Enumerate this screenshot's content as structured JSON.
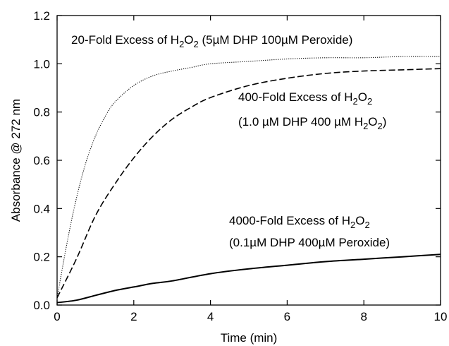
{
  "chart_data": {
    "type": "line",
    "xlabel": "Time (min)",
    "ylabel": "Absorbance @ 272 nm",
    "xlim": [
      0,
      10
    ],
    "ylim": [
      0,
      1.2
    ],
    "xticks": [
      0,
      2,
      4,
      6,
      8,
      10
    ],
    "xtick_labels": [
      "0",
      "2",
      "4",
      "6",
      "8",
      "10"
    ],
    "yticks": [
      0,
      0.2,
      0.4,
      0.6,
      0.8,
      1.0,
      1.2
    ],
    "ytick_labels": [
      "0.0",
      "0.2",
      "0.4",
      "0.6",
      "0.8",
      "1.0",
      "1.2"
    ],
    "grid": false,
    "series": [
      {
        "style": "dotted",
        "x": [
          0,
          0.25,
          0.5,
          0.75,
          1,
          1.25,
          1.5,
          2,
          2.5,
          3,
          3.5,
          4,
          5,
          6,
          7,
          8,
          9,
          10
        ],
        "y": [
          0.03,
          0.25,
          0.44,
          0.59,
          0.7,
          0.78,
          0.84,
          0.91,
          0.95,
          0.97,
          0.985,
          1.0,
          1.01,
          1.02,
          1.025,
          1.025,
          1.03,
          1.03
        ]
      },
      {
        "style": "dashed",
        "x": [
          0,
          0.5,
          1,
          1.5,
          2,
          2.5,
          3,
          3.5,
          4,
          5,
          6,
          7,
          8,
          9,
          10
        ],
        "y": [
          0.03,
          0.19,
          0.37,
          0.5,
          0.61,
          0.7,
          0.77,
          0.82,
          0.86,
          0.91,
          0.94,
          0.96,
          0.97,
          0.975,
          0.98
        ]
      },
      {
        "style": "solid",
        "x": [
          0,
          0.5,
          1,
          1.5,
          2,
          2.5,
          3,
          4,
          5,
          6,
          7,
          8,
          9,
          10
        ],
        "y": [
          0.01,
          0.02,
          0.04,
          0.06,
          0.075,
          0.09,
          0.1,
          0.13,
          0.15,
          0.165,
          0.18,
          0.19,
          0.2,
          0.21
        ]
      }
    ],
    "annotations": {
      "a1": {
        "pre": "20-Fold Excess of H",
        "s1": "2",
        "mid": "O",
        "s2": "2",
        "post": " (5µM DHP 100µM Peroxide)"
      },
      "a2l1": {
        "pre": "400-Fold Excess of H",
        "s1": "2",
        "mid": "O",
        "s2": "2"
      },
      "a2l2": {
        "pre": "(1.0 µM DHP 400 µM H",
        "s1": "2",
        "mid": "O",
        "s2": "2",
        "post": ")"
      },
      "a3l1": {
        "pre": "4000-Fold Excess of H",
        "s1": "2",
        "mid": "O",
        "s2": "2"
      },
      "a3l2": {
        "text": "(0.1µM DHP 400µM Peroxide)"
      }
    }
  }
}
